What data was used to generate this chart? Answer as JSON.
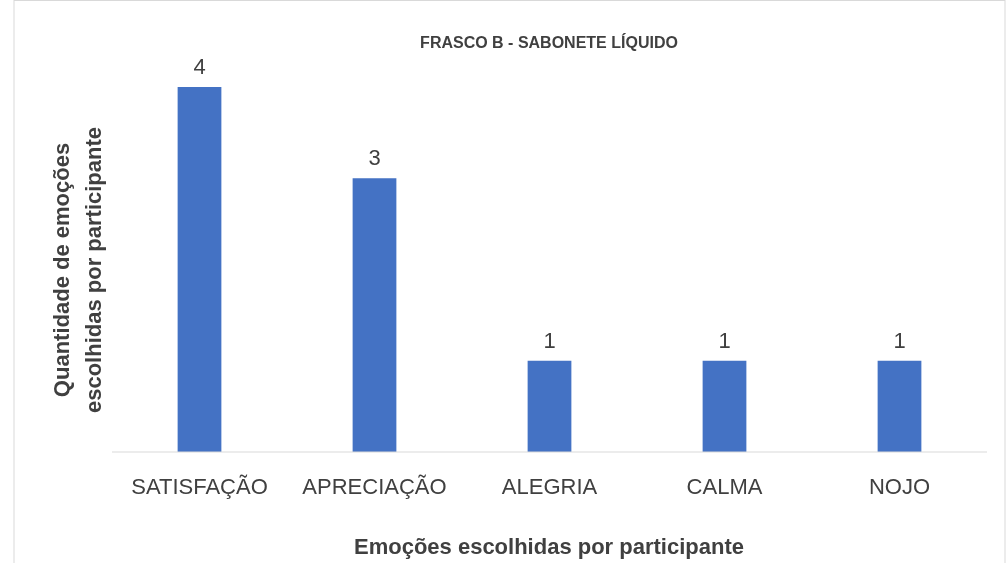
{
  "chart_data": {
    "type": "bar",
    "title": "FRASCO B - SABONETE LÍQUIDO",
    "xlabel": "Emoções escolhidas por participante",
    "ylabel": "Quantidade de emoções escolhidas por participante",
    "categories": [
      "SATISFAÇÃO",
      "APRECIAÇÃO",
      "ALEGRIA",
      "CALMA",
      "NOJO"
    ],
    "values": [
      4,
      3,
      1,
      1,
      1
    ],
    "color": "#4472c4",
    "data_labels": true,
    "grid": false
  }
}
